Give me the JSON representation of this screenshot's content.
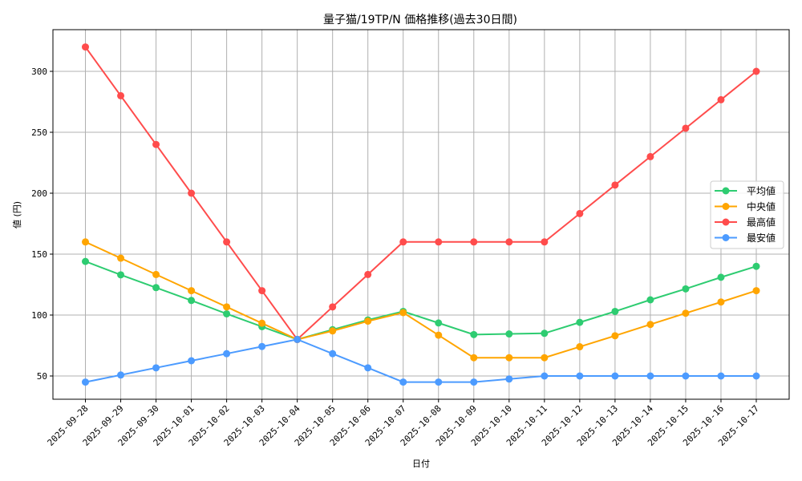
{
  "chart_data": {
    "type": "line",
    "title": "量子猫/19TP/N 価格推移(過去30日間)",
    "xlabel": "日付",
    "ylabel": "値 (円)",
    "ylim": [
      31,
      334
    ],
    "yticks": [
      50,
      100,
      150,
      200,
      250,
      300
    ],
    "grid": true,
    "legend_position": "center right",
    "categories": [
      "2025-09-28",
      "2025-09-29",
      "2025-09-30",
      "2025-10-01",
      "2025-10-02",
      "2025-10-03",
      "2025-10-04",
      "2025-10-05",
      "2025-10-06",
      "2025-10-07",
      "2025-10-08",
      "2025-10-09",
      "2025-10-10",
      "2025-10-11",
      "2025-10-12",
      "2025-10-13",
      "2025-10-14",
      "2025-10-15",
      "2025-10-16",
      "2025-10-17"
    ],
    "series": [
      {
        "name": "平均値",
        "color": "#2ecc71",
        "values": [
          144,
          133,
          122.5,
          112,
          101,
          90.5,
          80,
          88,
          96,
          103,
          93.5,
          84,
          84.5,
          85,
          94,
          103,
          112.5,
          121.5,
          131,
          140
        ]
      },
      {
        "name": "中央値",
        "color": "#ffa500",
        "values": [
          160,
          146.7,
          133.3,
          120,
          106.7,
          93.3,
          80,
          87,
          95,
          102,
          83.5,
          65,
          65,
          65,
          74,
          83,
          92.3,
          101.5,
          110.7,
          120
        ]
      },
      {
        "name": "最高値",
        "color": "#ff4c4c",
        "values": [
          320,
          280,
          240,
          200,
          160,
          120,
          80,
          106.7,
          133.3,
          160,
          160,
          160,
          160,
          160,
          183.3,
          206.7,
          230,
          253.3,
          276.7,
          300
        ]
      },
      {
        "name": "最安値",
        "color": "#4c9bff",
        "values": [
          45,
          50.8,
          56.7,
          62.5,
          68.3,
          74.2,
          80,
          68.3,
          56.7,
          45,
          45,
          45,
          47.5,
          50,
          50,
          50,
          50,
          50,
          50,
          50
        ]
      }
    ]
  },
  "style": {
    "grid_color": "#b0b0b0",
    "axis_color": "#000000",
    "legend_border": "#cccccc"
  }
}
